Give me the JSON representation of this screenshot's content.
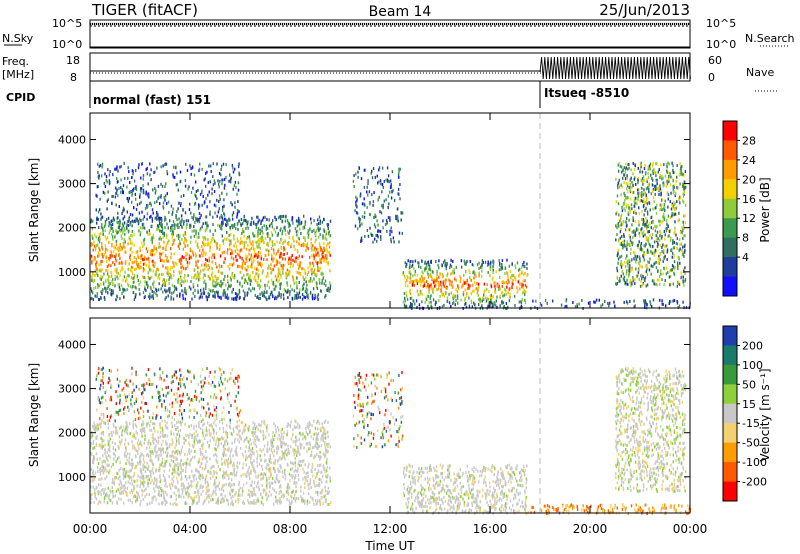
{
  "header": {
    "title": "TIGER (fitACF)",
    "beam": "Beam 14",
    "date": "25/Jun/2013"
  },
  "top_labels": {
    "nsky": "N.Sky",
    "nsearch": "N.Search",
    "freq": "Freq.",
    "freq_unit": "[MHz]",
    "nave": "Nave",
    "cpid": "CPID",
    "exp_mark": "10^5",
    "exp_zero": "10^0"
  },
  "freq_ticks": [
    "18",
    "8"
  ],
  "nave_ticks": [
    "60",
    "0"
  ],
  "cpid_segments": [
    {
      "label": "normal (fast) 151",
      "start_hour": 0
    },
    {
      "label": "Itsueq -8510",
      "start_hour": 18
    }
  ],
  "x_axis": {
    "label": "Time UT",
    "ticks": [
      "00:00",
      "04:00",
      "08:00",
      "12:00",
      "16:00",
      "20:00",
      "00:00"
    ],
    "tick_hours": [
      0,
      4,
      8,
      12,
      16,
      20,
      24
    ]
  },
  "chart_data": [
    {
      "type": "heatmap",
      "quantity": "power",
      "ylabel": "Slant Range [km]",
      "yticks": [
        1000,
        2000,
        3000,
        4000
      ],
      "ylim": [
        180,
        4600
      ],
      "xlim": [
        0,
        24
      ],
      "colorbar_label": "Power [dB]",
      "colorbar_ticks": [
        "28",
        "24",
        "20",
        "16",
        "12",
        "8",
        "4"
      ],
      "colorbar_colors": [
        "#ff0000",
        "#ff5a00",
        "#ff9c00",
        "#f5d000",
        "#8ecc3a",
        "#3c9a50",
        "#2e6f60",
        "#1e3d9c",
        "#1010ff"
      ],
      "regions": [
        {
          "x0": 0.0,
          "x1": 9.6,
          "y0": 400,
          "y1": 2300,
          "level": "high"
        },
        {
          "x0": 0.2,
          "x1": 6.0,
          "y0": 2300,
          "y1": 3500,
          "level": "low"
        },
        {
          "x0": 10.5,
          "x1": 12.5,
          "y0": 1700,
          "y1": 3400,
          "level": "low"
        },
        {
          "x0": 12.5,
          "x1": 17.5,
          "y0": 200,
          "y1": 1300,
          "level": "high"
        },
        {
          "x0": 17.5,
          "x1": 24.0,
          "y0": 200,
          "y1": 400,
          "level": "low"
        },
        {
          "x0": 21.0,
          "x1": 23.8,
          "y0": 700,
          "y1": 3500,
          "level": "mid"
        }
      ]
    },
    {
      "type": "heatmap",
      "quantity": "velocity",
      "ylabel": "Slant Range [km]",
      "yticks": [
        1000,
        2000,
        3000,
        4000
      ],
      "ylim": [
        180,
        4600
      ],
      "xlim": [
        0,
        24
      ],
      "colorbar_label": "Velocity [m s⁻¹]",
      "colorbar_ticks": [
        "200",
        "100",
        "50",
        "15",
        "-15",
        "-50",
        "-100",
        "-200"
      ],
      "colorbar_colors": [
        "#1f3fae",
        "#1a7a6c",
        "#3a9a3a",
        "#8ed03a",
        "#c8c8c8",
        "#f3d070",
        "#ff9c00",
        "#ff5a00",
        "#ff0000"
      ],
      "regions": [
        {
          "x0": 0.0,
          "x1": 9.6,
          "y0": 400,
          "y1": 2300,
          "level": "gray"
        },
        {
          "x0": 0.2,
          "x1": 6.0,
          "y0": 2300,
          "y1": 3500,
          "level": "sparse"
        },
        {
          "x0": 10.5,
          "x1": 12.5,
          "y0": 1700,
          "y1": 3400,
          "level": "sparse"
        },
        {
          "x0": 12.5,
          "x1": 17.5,
          "y0": 200,
          "y1": 1300,
          "level": "gray"
        },
        {
          "x0": 17.5,
          "x1": 24.0,
          "y0": 200,
          "y1": 400,
          "level": "orange"
        },
        {
          "x0": 21.0,
          "x1": 23.8,
          "y0": 700,
          "y1": 3500,
          "level": "mixed"
        }
      ]
    }
  ]
}
